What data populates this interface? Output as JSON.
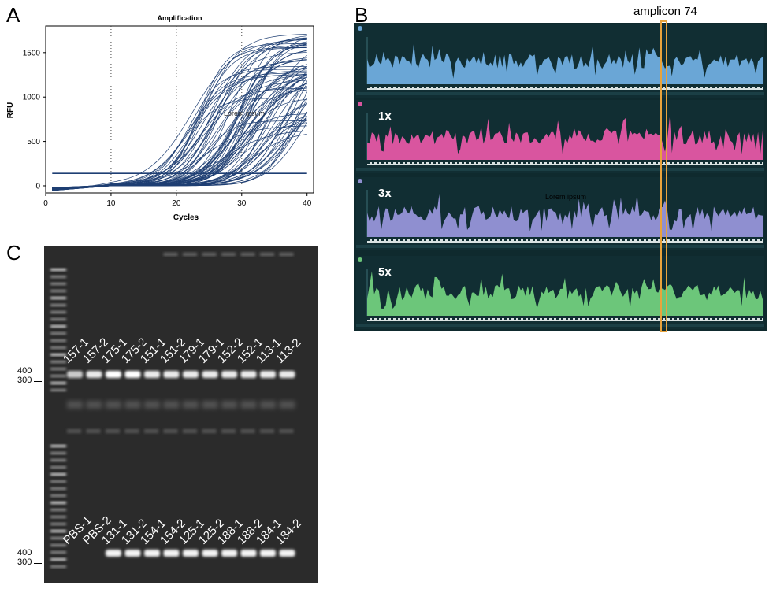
{
  "panel_letters": {
    "a": "A",
    "b": "B",
    "c": "C"
  },
  "chart_data": {
    "type": "line",
    "title": "Amplification",
    "xlabel": "Cycles",
    "ylabel": "RFU",
    "xlim": [
      0,
      41
    ],
    "ylim": [
      -80,
      1800
    ],
    "xticks": [
      0,
      10,
      20,
      30,
      40
    ],
    "yticks": [
      0,
      500,
      1000,
      1500
    ],
    "threshold": 140,
    "grid": "dotted vertical lines at 10, 20, 30",
    "annotation": "Lorem ipsum",
    "line_color": "#1f3f73",
    "curve_count": 80,
    "curve_midpoint_range": [
      21,
      40
    ],
    "plateau_range": [
      200,
      1720
    ]
  },
  "panelB": {
    "amplicon_label": "amplicon 74",
    "annotation": "Lorem ipsum",
    "tracks": [
      {
        "multiplier": "",
        "color": "#6aa6d6",
        "dot": "#6aa6d6"
      },
      {
        "multiplier": "1x",
        "color": "#d9559f",
        "dot": "#d9559f"
      },
      {
        "multiplier": "3x",
        "color": "#8f8fd0",
        "dot": "#8f8fd0"
      },
      {
        "multiplier": "5x",
        "color": "#6cc67a",
        "dot": "#6cc67a"
      }
    ]
  },
  "panelC": {
    "top_lanes": [
      "157-1",
      "157-2",
      "175-1",
      "175-2",
      "151-1",
      "151-2",
      "179-1",
      "179-1",
      "152-2",
      "152-1",
      "113-1",
      "113-2"
    ],
    "bottom_lanes": [
      "PBS-1",
      "PBS-2",
      "131-1",
      "131-2",
      "154-1",
      "154-2",
      "125-1",
      "125-2",
      "188-1",
      "188-2",
      "184-1",
      "184-2"
    ],
    "top_markers": [
      "400",
      "300"
    ],
    "bottom_markers": [
      "400",
      "300"
    ],
    "bottom_band_present": [
      false,
      false,
      true,
      true,
      true,
      true,
      true,
      true,
      true,
      true,
      true,
      true
    ]
  }
}
